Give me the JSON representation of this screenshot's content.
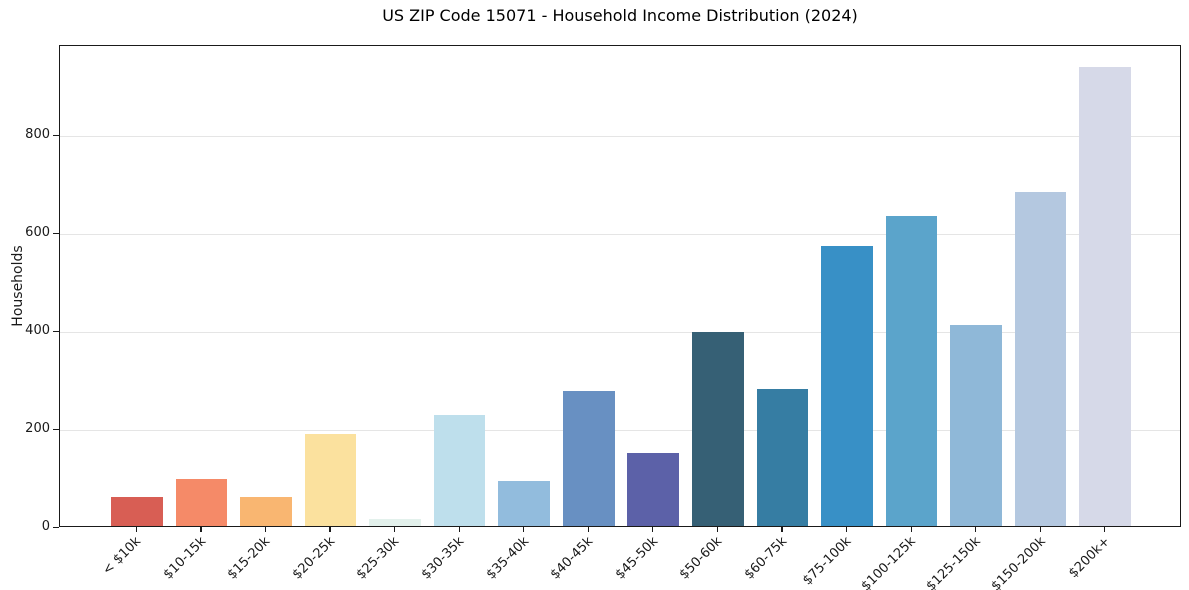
{
  "title": "US ZIP Code 15071 - Household Income Distribution (2024)",
  "chart_data": {
    "type": "bar",
    "title": "US ZIP Code 15071 - Household Income Distribution (2024)",
    "xlabel": "",
    "ylabel": "Households",
    "categories": [
      "< $10k",
      "$10-15k",
      "$15-20k",
      "$20-25k",
      "$25-30k",
      "$30-35k",
      "$35-40k",
      "$40-45k",
      "$45-50k",
      "$50-60k",
      "$60-75k",
      "$75-100k",
      "$100-125k",
      "$125-150k",
      "$150-200k",
      "$200k+"
    ],
    "values": [
      60,
      95,
      60,
      188,
      15,
      226,
      92,
      275,
      149,
      396,
      279,
      571,
      632,
      410,
      681,
      936
    ],
    "bar_colors": [
      "#d85e54",
      "#f58a68",
      "#f9b671",
      "#fbe19e",
      "#e3f1ec",
      "#bedfec",
      "#92bcdd",
      "#6890c2",
      "#5c61a8",
      "#366075",
      "#367da3",
      "#3890c6",
      "#5ba4cb",
      "#8fb8d8",
      "#b4c8e0",
      "#d6d9e8"
    ],
    "yticks": [
      0,
      200,
      400,
      600,
      800
    ],
    "ylim": [
      0,
      983
    ],
    "grid": "horizontal",
    "legend": "none",
    "colors": {
      "grid": "#e5e5e5",
      "spine": "#1a1a1a",
      "text": "#1a1a1a",
      "background": "#ffffff"
    }
  }
}
